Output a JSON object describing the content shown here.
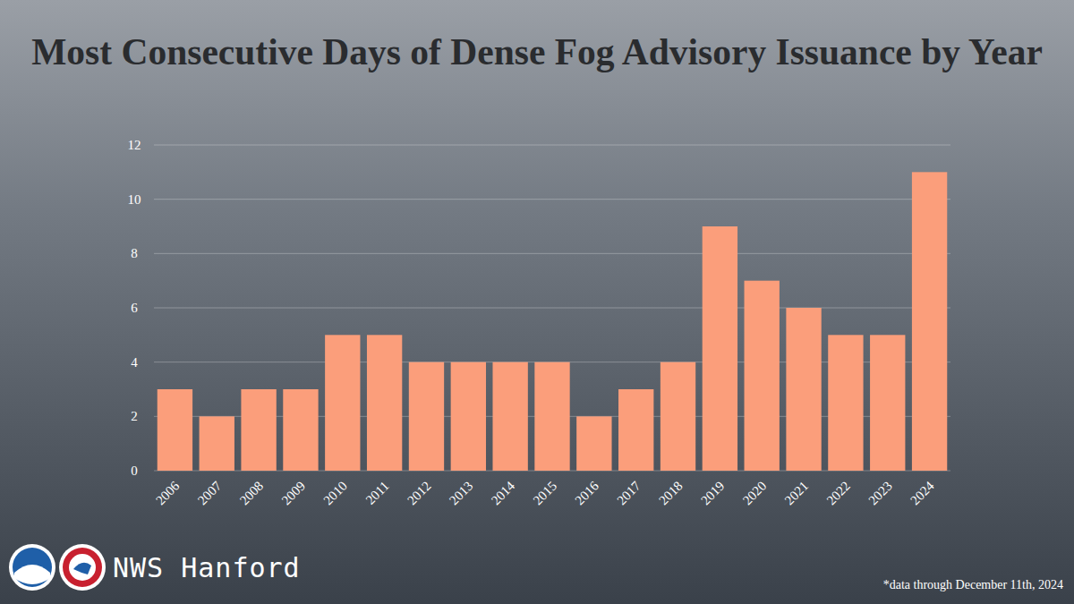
{
  "chart_data": {
    "type": "bar",
    "title": "Most Consecutive Days of Dense Fog Advisory Issuance by Year",
    "categories": [
      "2006",
      "2007",
      "2008",
      "2009",
      "2010",
      "2011",
      "2012",
      "2013",
      "2014",
      "2015",
      "2016",
      "2017",
      "2018",
      "2019",
      "2020",
      "2021",
      "2022",
      "2023",
      "2024"
    ],
    "values": [
      3,
      2,
      3,
      3,
      5,
      5,
      4,
      4,
      4,
      4,
      2,
      3,
      4,
      9,
      7,
      6,
      5,
      5,
      11
    ],
    "color": "#fb9e7b",
    "ylim": [
      0,
      12
    ],
    "yticks": [
      0,
      2,
      4,
      6,
      8,
      10,
      12
    ],
    "grid": true,
    "annotations": [
      "NWS Hanford",
      "*data through December 11th, 2024"
    ]
  }
}
